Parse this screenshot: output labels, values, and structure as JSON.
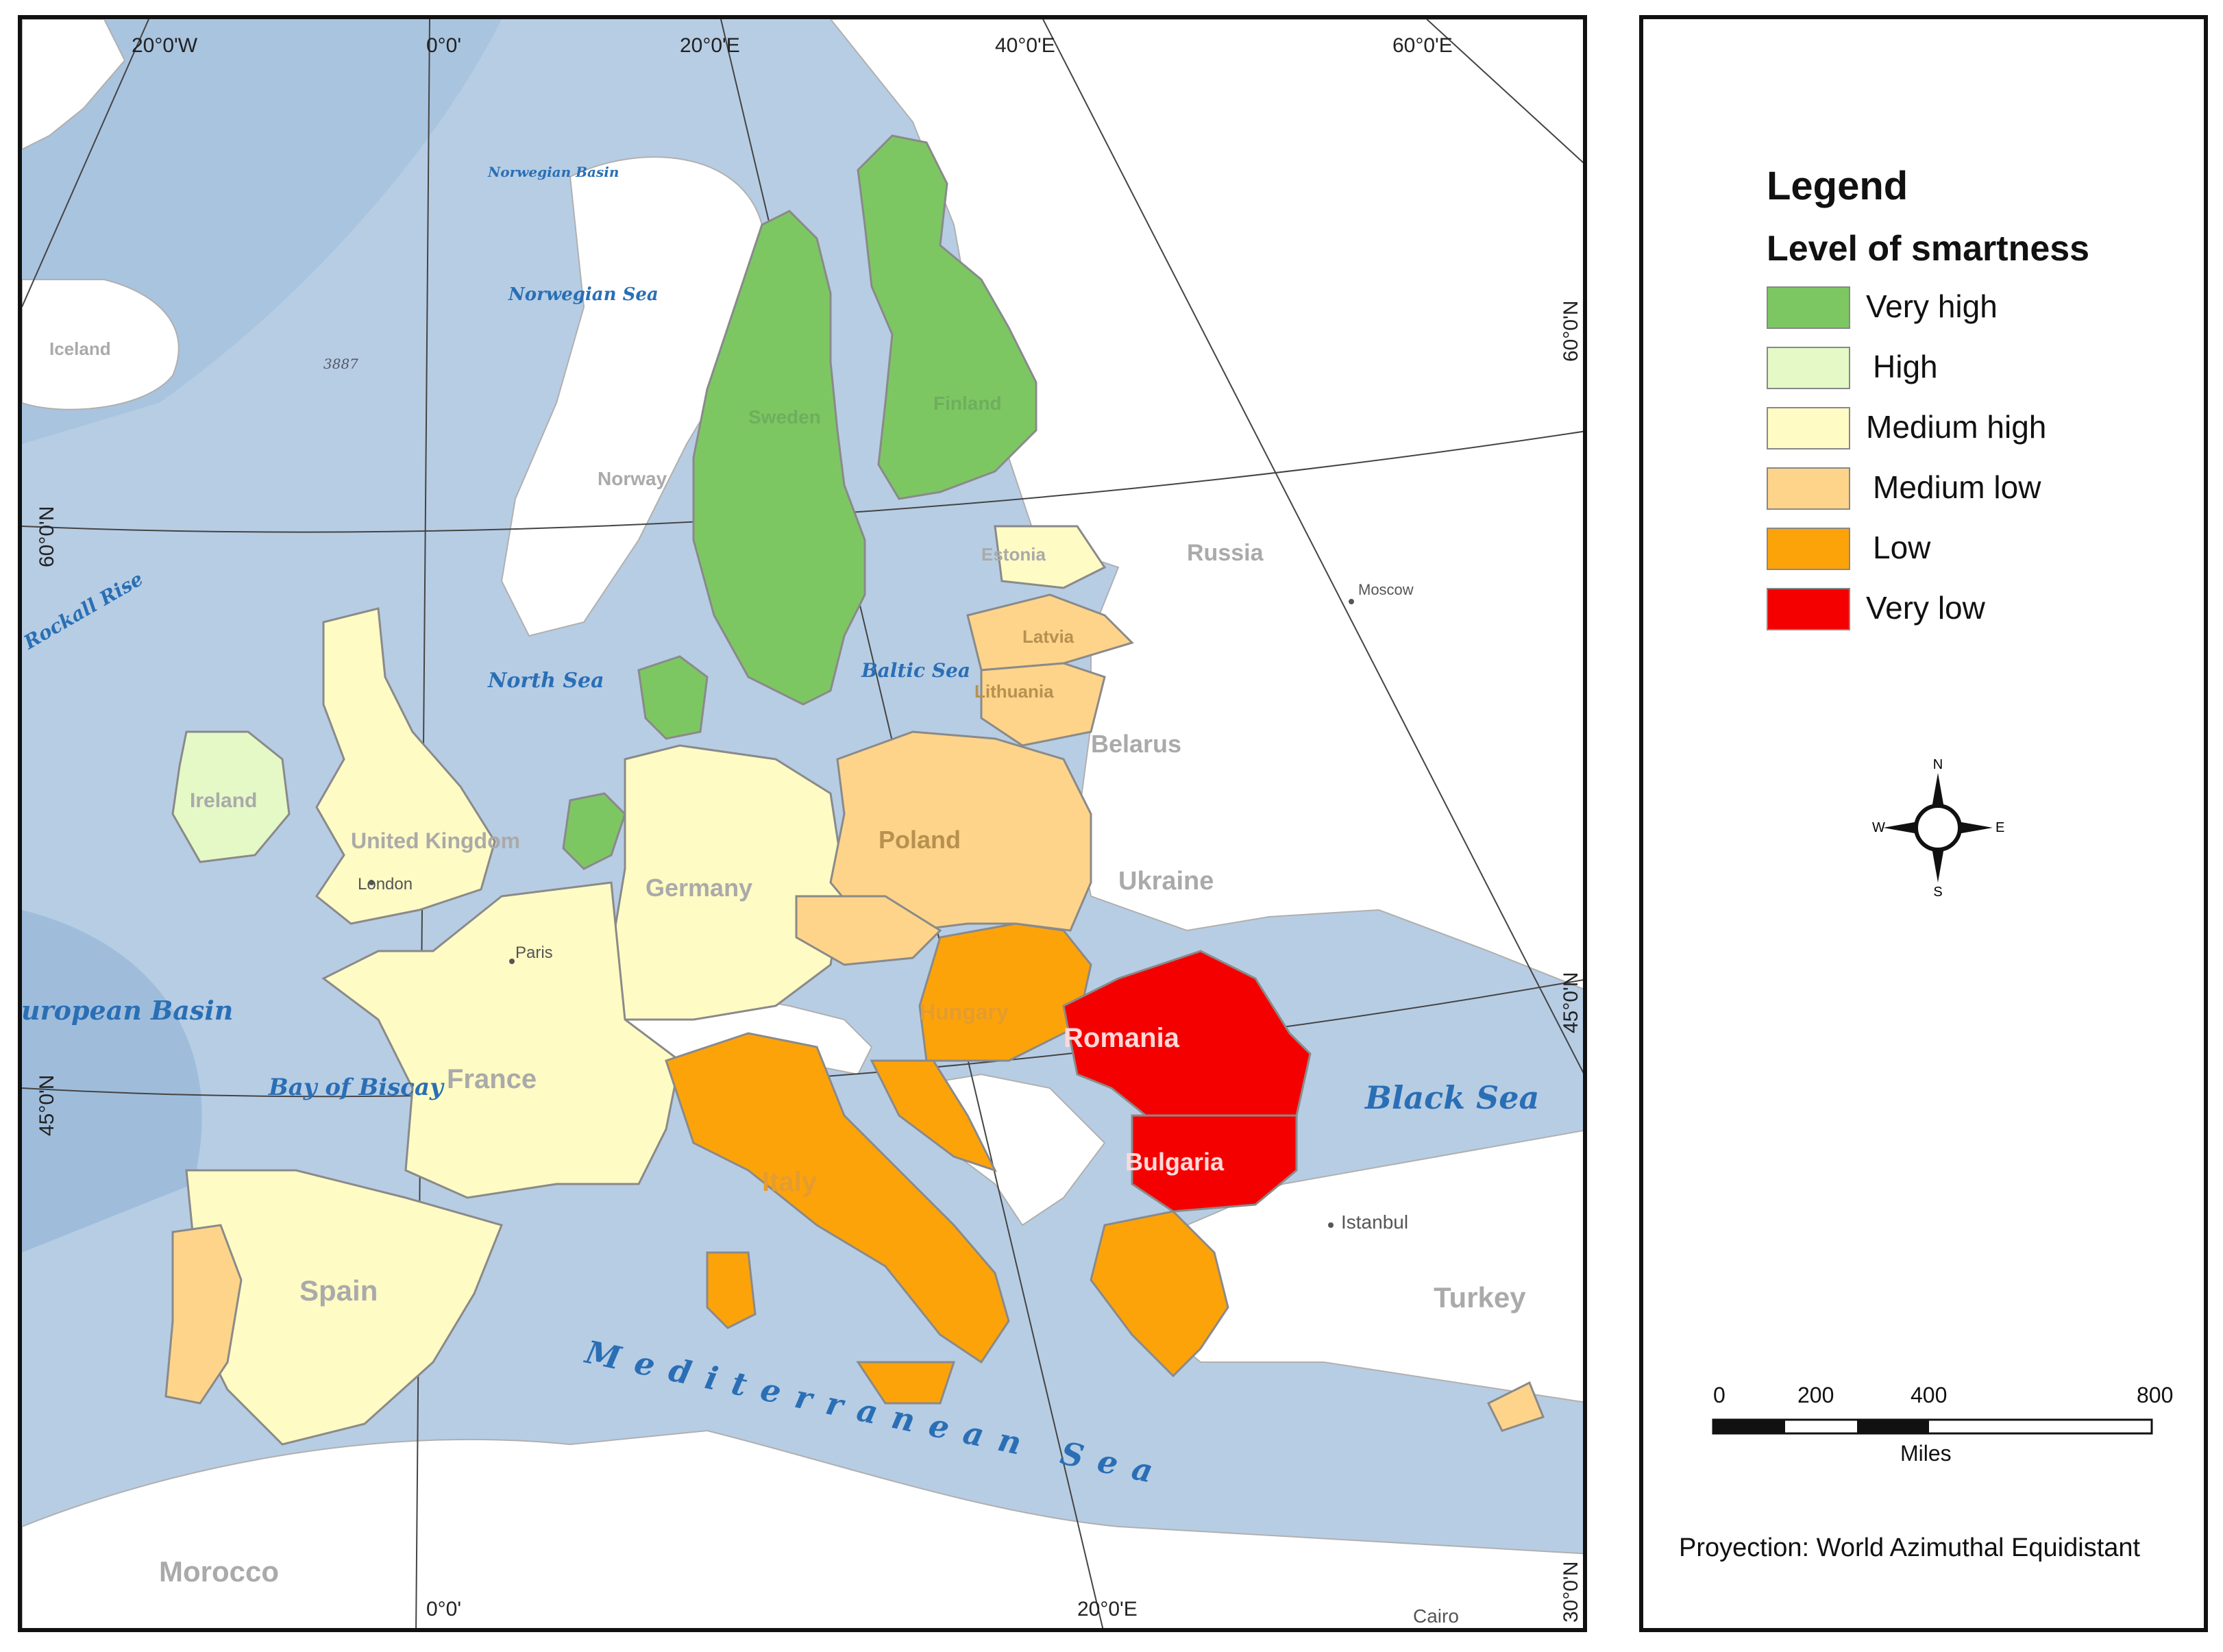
{
  "legend": {
    "title": "Legend",
    "subtitle": "Level of smartness",
    "items": [
      {
        "label": "Very high",
        "color": "#7dc763"
      },
      {
        "label": "High",
        "color": "#e4f9c6"
      },
      {
        "label": "Medium high",
        "color": "#fefbc4"
      },
      {
        "label": "Medium low",
        "color": "#fdd48a"
      },
      {
        "label": "Low",
        "color": "#fda30a"
      },
      {
        "label": "Very low",
        "color": "#f40000"
      }
    ]
  },
  "compass": {
    "n": "N",
    "s": "S",
    "e": "E",
    "w": "W"
  },
  "scale_bar": {
    "ticks": [
      "0",
      "200",
      "400",
      "800"
    ],
    "unit": "Miles"
  },
  "projection": "Proyection: World Azimuthal Equidistant",
  "graticule": {
    "top": [
      "20°0'W",
      "0°0'",
      "20°0'E",
      "40°0'E",
      "60°0'E"
    ],
    "right": [
      "60°0'N",
      "45°0'N",
      "30°0'N"
    ],
    "left": [
      "60°0'N",
      "45°0'N"
    ],
    "bottom": [
      "0°0'",
      "20°0'E"
    ]
  },
  "countries": {
    "very_high": [
      "Sweden",
      "Finland"
    ],
    "high": [
      "Ireland"
    ],
    "medium_high": [
      "United Kingdom",
      "Germany",
      "France",
      "Spain",
      "Estonia"
    ],
    "medium_low": [
      "Poland",
      "Latvia",
      "Lithuania"
    ],
    "low": [
      "Hungary",
      "Italy"
    ],
    "very_low": [
      "Romania",
      "Bulgaria"
    ],
    "other": [
      "Norway",
      "Russia",
      "Belarus",
      "Ukraine",
      "Turkey",
      "Morocco",
      "Iceland"
    ]
  },
  "cities": [
    "London",
    "Paris",
    "Moscow",
    "Istanbul",
    "Cairo"
  ],
  "seas": [
    "Norwegian Basin",
    "Norwegian Sea",
    "North Sea",
    "Baltic Sea",
    "Bay of Biscay",
    "Black Sea",
    "Mediterranean Sea",
    "European Basin",
    "Rockall Rise"
  ],
  "depth_label": "3887"
}
